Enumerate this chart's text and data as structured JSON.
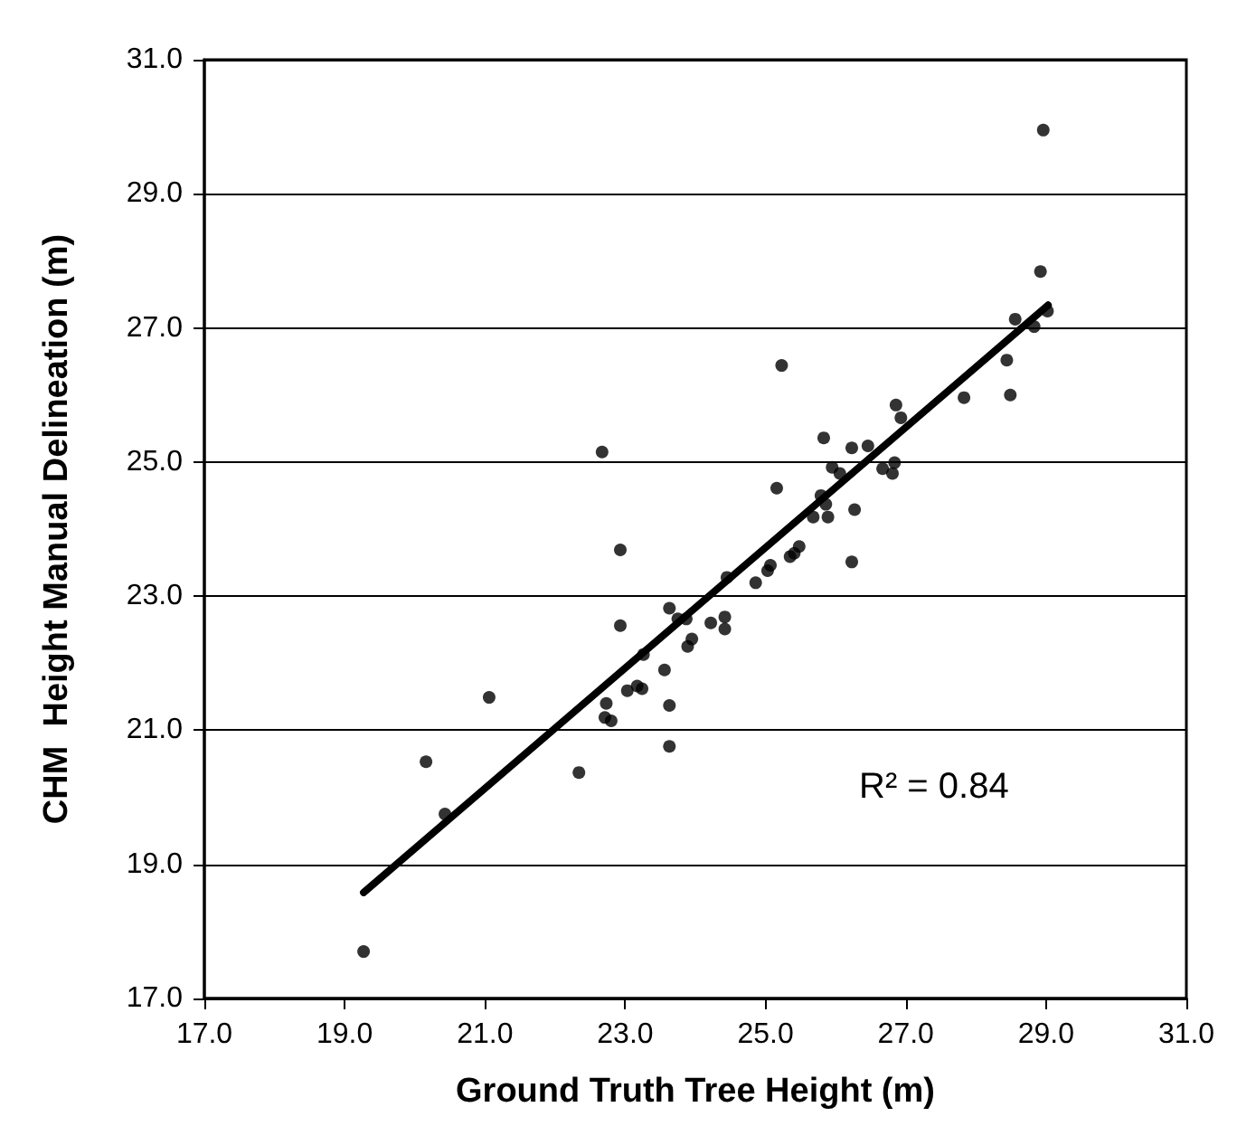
{
  "chart_data": {
    "type": "scatter",
    "xlabel": "Ground Truth Tree Height (m)",
    "ylabel": "CHM  Height Manual Delineation (m)",
    "annotations": [
      "R² = 0.84"
    ],
    "xlim": [
      17,
      31
    ],
    "ylim": [
      17,
      31
    ],
    "xticks": [
      {
        "value": 17,
        "label": "17.0"
      },
      {
        "value": 19,
        "label": "19.0"
      },
      {
        "value": 21,
        "label": "21.0"
      },
      {
        "value": 23,
        "label": "23.0"
      },
      {
        "value": 25,
        "label": "25.0"
      },
      {
        "value": 27,
        "label": "27.0"
      },
      {
        "value": 29,
        "label": "29.0"
      },
      {
        "value": 31,
        "label": "31.0"
      }
    ],
    "yticks": [
      {
        "value": 17,
        "label": "17.0"
      },
      {
        "value": 19,
        "label": "19.0"
      },
      {
        "value": 21,
        "label": "21.0"
      },
      {
        "value": 23,
        "label": "23.0"
      },
      {
        "value": 25,
        "label": "25.0"
      },
      {
        "value": 27,
        "label": "27.0"
      },
      {
        "value": 29,
        "label": "29.0"
      },
      {
        "value": 31,
        "label": "31.0"
      }
    ],
    "grid": "y",
    "marker": "circle",
    "series": [
      {
        "color": "#000000",
        "x": [
          22.93,
          22.93,
          21.06,
          20.16,
          20.43,
          19.27,
          22.34,
          22.73,
          22.71,
          22.8,
          23.03,
          23.17,
          23.24,
          23.26,
          23.63,
          23.56,
          23.63,
          23.63,
          23.75,
          23.87,
          23.89,
          23.95,
          24.22,
          24.42,
          24.42,
          24.45,
          24.86,
          25.03,
          25.07,
          25.35,
          25.41,
          25.48,
          25.68,
          25.85,
          25.89,
          26.23,
          26.27,
          28.96,
          28.92,
          29.02,
          28.56,
          28.83,
          28.44,
          28.49,
          27.83,
          25.23,
          25.83,
          26.23,
          26.46,
          26.86,
          26.93,
          25.95,
          26.06,
          26.67,
          26.84,
          26.81,
          25.16,
          25.79,
          25.86,
          22.67
        ],
        "values": [
          23.69,
          22.56,
          21.49,
          20.53,
          19.75,
          17.7,
          20.37,
          21.4,
          21.19,
          21.14,
          21.59,
          21.66,
          21.62,
          22.13,
          22.82,
          21.9,
          21.37,
          20.76,
          22.66,
          22.66,
          22.25,
          22.36,
          22.6,
          22.69,
          22.51,
          23.28,
          23.2,
          23.38,
          23.46,
          23.59,
          23.64,
          23.74,
          24.18,
          null,
          24.18,
          23.51,
          24.29,
          29.95,
          27.84,
          27.25,
          27.13,
          27.02,
          26.52,
          26.0,
          25.96,
          26.44,
          25.36,
          25.21,
          25.24,
          25.85,
          25.66,
          24.92,
          24.83,
          24.9,
          24.99,
          24.83,
          24.61,
          24.5,
          24.37,
          25.15
        ]
      },
      {
        "type": "line",
        "color": "#000000",
        "marker": "none",
        "line_style": "solid",
        "x": [
          19.27,
          29.03
        ],
        "values": [
          18.58,
          27.34
        ]
      }
    ]
  }
}
